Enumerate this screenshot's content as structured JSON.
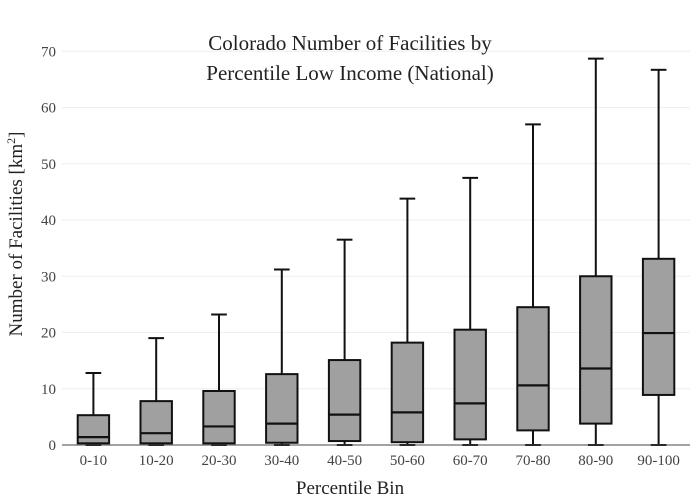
{
  "chart_data": {
    "type": "box",
    "title_lines": [
      "Colorado Number of Facilities by",
      "Percentile Low Income (National)"
    ],
    "xlabel": "Percentile Bin",
    "ylabel_main": "Number of Facilities  [km",
    "ylabel_sup": "2",
    "ylabel_end": "]",
    "ylim": [
      0,
      72
    ],
    "yticks": [
      0,
      10,
      20,
      30,
      40,
      50,
      60,
      70
    ],
    "grid": true,
    "colors": {
      "box_fill": "#a0a0a0",
      "box_edge": "#111111",
      "grid": "#eeeeee"
    },
    "categories": [
      "0-10",
      "10-20",
      "20-30",
      "30-40",
      "40-50",
      "50-60",
      "60-70",
      "70-80",
      "80-90",
      "90-100"
    ],
    "boxes": [
      {
        "min": 0,
        "q1": 0.3,
        "median": 1.4,
        "q3": 5.3,
        "max": 12.8
      },
      {
        "min": 0,
        "q1": 0.3,
        "median": 2.1,
        "q3": 7.8,
        "max": 19.0
      },
      {
        "min": 0,
        "q1": 0.3,
        "median": 3.3,
        "q3": 9.6,
        "max": 23.2
      },
      {
        "min": 0,
        "q1": 0.4,
        "median": 3.8,
        "q3": 12.6,
        "max": 31.2
      },
      {
        "min": 0,
        "q1": 0.7,
        "median": 5.4,
        "q3": 15.1,
        "max": 36.5
      },
      {
        "min": 0,
        "q1": 0.5,
        "median": 5.8,
        "q3": 18.2,
        "max": 43.8
      },
      {
        "min": 0,
        "q1": 1.0,
        "median": 7.4,
        "q3": 20.5,
        "max": 47.5
      },
      {
        "min": 0,
        "q1": 2.6,
        "median": 10.6,
        "q3": 24.5,
        "max": 57.0
      },
      {
        "min": 0,
        "q1": 3.8,
        "median": 13.6,
        "q3": 30.0,
        "max": 68.7
      },
      {
        "min": 0,
        "q1": 8.9,
        "median": 19.9,
        "q3": 33.1,
        "max": 66.7
      }
    ]
  }
}
